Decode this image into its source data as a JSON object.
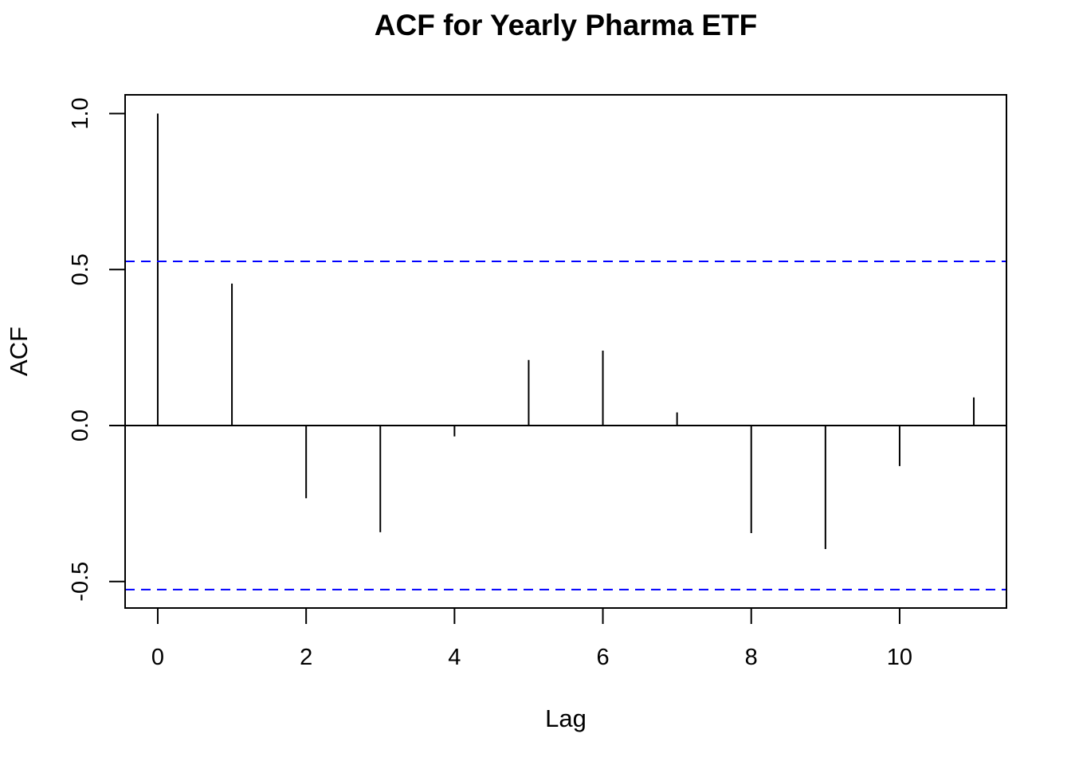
{
  "chart_data": {
    "type": "bar",
    "subtype": "acf-stem",
    "title": "ACF for Yearly Pharma ETF",
    "xlabel": "Lag",
    "ylabel": "ACF",
    "x": [
      0,
      1,
      2,
      3,
      4,
      5,
      6,
      7,
      8,
      9,
      10,
      11
    ],
    "values": [
      1.0,
      0.455,
      -0.233,
      -0.342,
      -0.035,
      0.21,
      0.24,
      0.042,
      -0.345,
      -0.396,
      -0.13,
      0.09
    ],
    "xlim": [
      -0.44,
      11.44
    ],
    "ylim": [
      -0.585,
      1.06
    ],
    "xticks": [
      0,
      2,
      4,
      6,
      8,
      10
    ],
    "xtick_labels": [
      "0",
      "2",
      "4",
      "6",
      "8",
      "10"
    ],
    "yticks": [
      -0.5,
      0.0,
      0.5,
      1.0
    ],
    "ytick_labels": [
      "-0.5",
      "0.0",
      "0.5",
      "1.0"
    ],
    "confidence_bounds": [
      0.526,
      -0.526
    ],
    "colors": {
      "stem": "#000000",
      "zero_line": "#000000",
      "confidence": "#0000ff",
      "frame": "#000000"
    },
    "grid": false,
    "legend": "none"
  }
}
